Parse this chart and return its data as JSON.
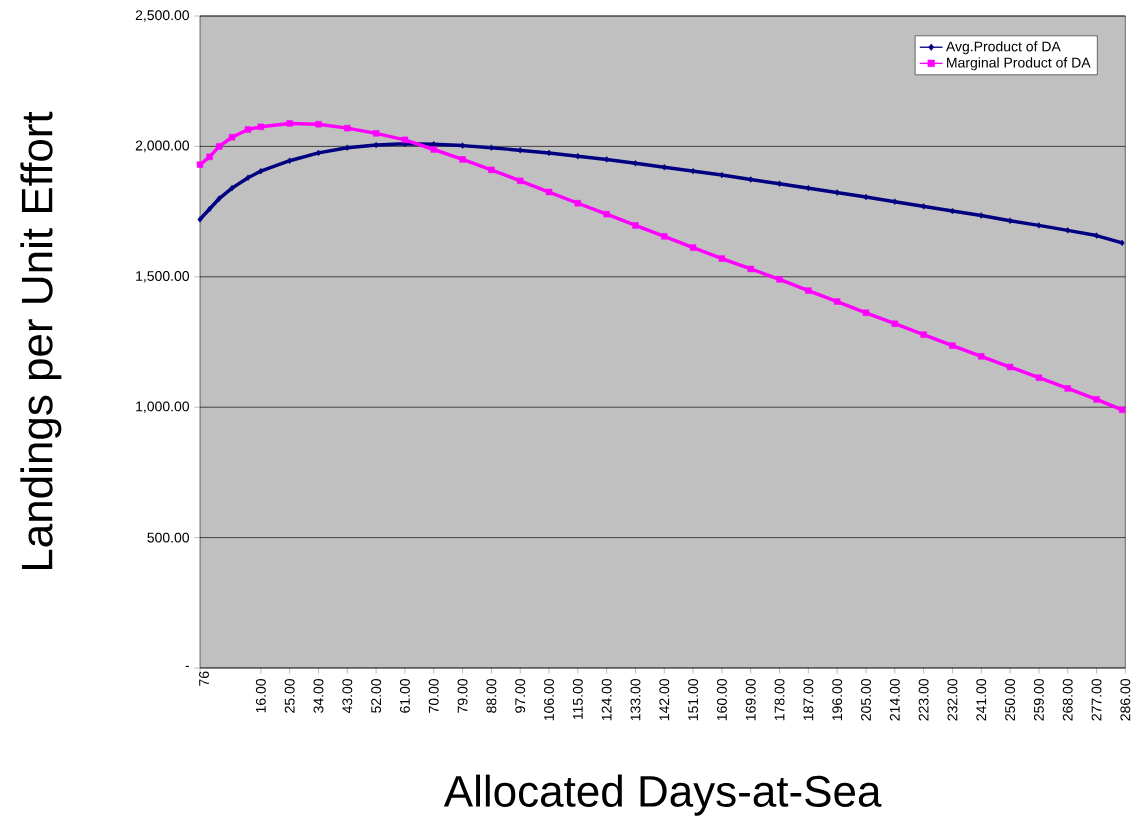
{
  "chart_data": {
    "type": "line",
    "xlabel": "Allocated Days-at-Sea",
    "ylabel": "Landings per Unit Effort",
    "xlim": [
      -3,
      286
    ],
    "annotations": [
      "76"
    ],
    "xticks": [
      {
        "value": -3,
        "label": null
      },
      {
        "value": 16,
        "label": "16.00"
      },
      {
        "value": 25,
        "label": "25.00"
      },
      {
        "value": 34,
        "label": "34.00"
      },
      {
        "value": 43,
        "label": "43.00"
      },
      {
        "value": 52,
        "label": "52.00"
      },
      {
        "value": 61,
        "label": "61.00"
      },
      {
        "value": 70,
        "label": "70.00"
      },
      {
        "value": 79,
        "label": "79.00"
      },
      {
        "value": 88,
        "label": "88.00"
      },
      {
        "value": 97,
        "label": "97.00"
      },
      {
        "value": 106,
        "label": "106.00"
      },
      {
        "value": 115,
        "label": "115.00"
      },
      {
        "value": 124,
        "label": "124.00"
      },
      {
        "value": 133,
        "label": "133.00"
      },
      {
        "value": 142,
        "label": "142.00"
      },
      {
        "value": 151,
        "label": "151.00"
      },
      {
        "value": 160,
        "label": "160.00"
      },
      {
        "value": 169,
        "label": "169.00"
      },
      {
        "value": 178,
        "label": "178.00"
      },
      {
        "value": 187,
        "label": "187.00"
      },
      {
        "value": 196,
        "label": "196.00"
      },
      {
        "value": 205,
        "label": "205.00"
      },
      {
        "value": 214,
        "label": "214.00"
      },
      {
        "value": 223,
        "label": "223.00"
      },
      {
        "value": 232,
        "label": "232.00"
      },
      {
        "value": 241,
        "label": "241.00"
      },
      {
        "value": 250,
        "label": "250.00"
      },
      {
        "value": 259,
        "label": "259.00"
      },
      {
        "value": 268,
        "label": "268.00"
      },
      {
        "value": 277,
        "label": "277.00"
      },
      {
        "value": 286,
        "label": "286.00"
      }
    ],
    "ylim": [
      0,
      2500
    ],
    "yticks": [
      {
        "value": 0,
        "label": "-"
      },
      {
        "value": 500,
        "label": "500.00"
      },
      {
        "value": 1000,
        "label": "1,000.00"
      },
      {
        "value": 1500,
        "label": "1,500.00"
      },
      {
        "value": 2000,
        "label": "2,000.00"
      },
      {
        "value": 2500,
        "label": "2,500.00"
      }
    ],
    "grid": "y",
    "legend": "top right",
    "series": [
      {
        "name": "Avg.Product of DA",
        "color": "#000080",
        "marker": "diamond",
        "x": [
          -3,
          0,
          3,
          7,
          12,
          16,
          25,
          34,
          43,
          52,
          61,
          70,
          79,
          88,
          97,
          106,
          115,
          124,
          133,
          142,
          151,
          160,
          169,
          178,
          187,
          196,
          205,
          214,
          223,
          232,
          241,
          250,
          259,
          268,
          277,
          285
        ],
        "values": [
          1720,
          1760,
          1800,
          1840,
          1880,
          1905,
          1945,
          1975,
          1995,
          2005,
          2010,
          2008,
          2003,
          1995,
          1985,
          1975,
          1962,
          1950,
          1935,
          1920,
          1905,
          1890,
          1873,
          1857,
          1840,
          1823,
          1806,
          1788,
          1770,
          1752,
          1735,
          1715,
          1697,
          1678,
          1658,
          1630
        ]
      },
      {
        "name": "Marginal Product of DA",
        "color": "#ff00ff",
        "marker": "square",
        "x": [
          -3,
          0,
          3,
          7,
          12,
          16,
          25,
          34,
          43,
          52,
          61,
          70,
          79,
          88,
          97,
          106,
          115,
          124,
          133,
          142,
          151,
          160,
          169,
          178,
          187,
          196,
          205,
          214,
          223,
          232,
          241,
          250,
          259,
          268,
          277,
          285
        ],
        "values": [
          1930,
          1960,
          2000,
          2035,
          2065,
          2075,
          2088,
          2085,
          2070,
          2050,
          2025,
          1988,
          1950,
          1910,
          1868,
          1825,
          1782,
          1740,
          1697,
          1655,
          1612,
          1570,
          1530,
          1490,
          1447,
          1405,
          1362,
          1320,
          1278,
          1236,
          1195,
          1154,
          1113,
          1072,
          1030,
          990
        ]
      }
    ]
  }
}
